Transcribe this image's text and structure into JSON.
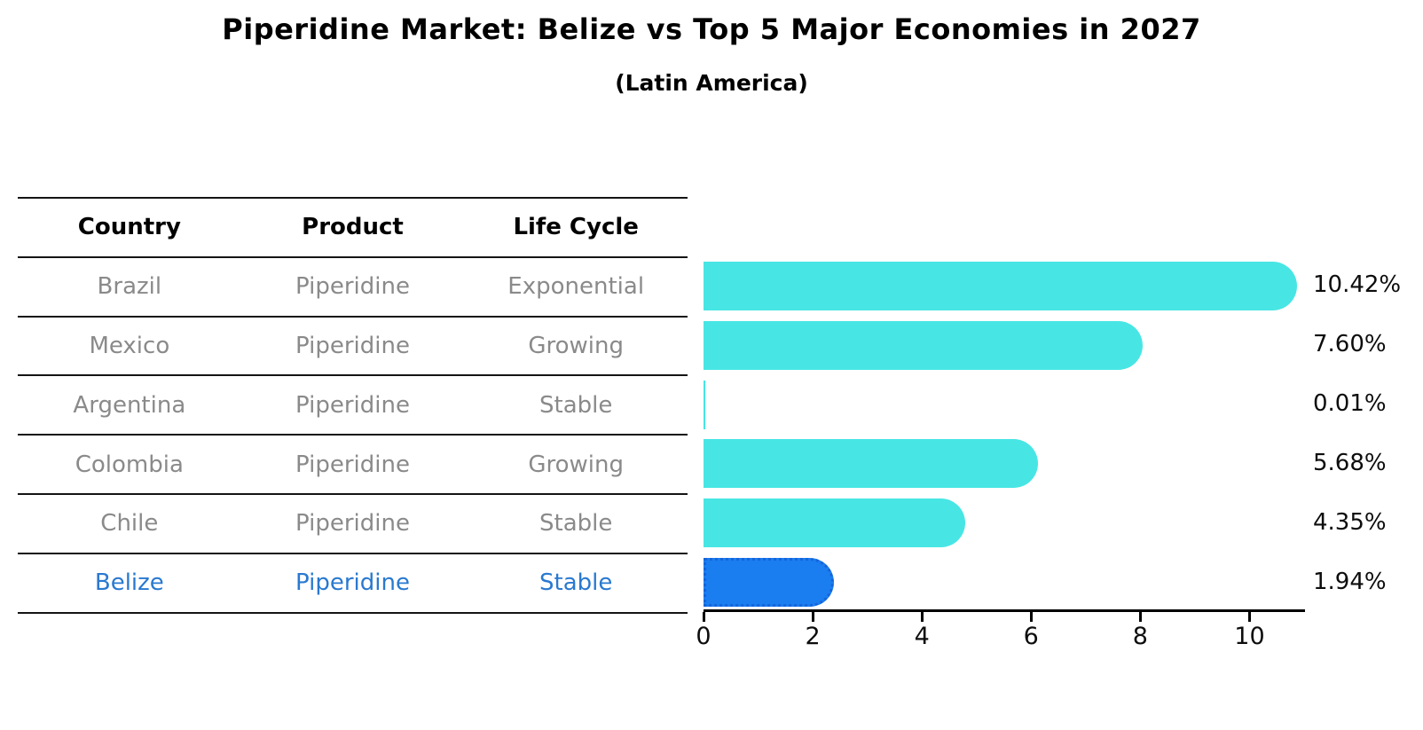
{
  "title": "Piperidine Market: Belize vs Top 5 Major Economies in 2027",
  "subtitle": "(Latin America)",
  "table": {
    "headers": [
      "Country",
      "Product",
      "Life Cycle"
    ],
    "rows": [
      {
        "country": "Brazil",
        "product": "Piperidine",
        "life_cycle": "Exponential",
        "highlight": false
      },
      {
        "country": "Mexico",
        "product": "Piperidine",
        "life_cycle": "Growing",
        "highlight": false
      },
      {
        "country": "Argentina",
        "product": "Piperidine",
        "life_cycle": "Stable",
        "highlight": false
      },
      {
        "country": "Colombia",
        "product": "Piperidine",
        "life_cycle": "Growing",
        "highlight": false
      },
      {
        "country": "Chile",
        "product": "Piperidine",
        "life_cycle": "Stable",
        "highlight": false
      },
      {
        "country": "Belize",
        "product": "Piperidine",
        "life_cycle": "Stable",
        "highlight": true
      }
    ]
  },
  "chart_data": {
    "type": "bar",
    "orientation": "horizontal",
    "title": "Piperidine Market: Belize vs Top 5 Major Economies in 2027 (Latin America)",
    "categories": [
      "Brazil",
      "Mexico",
      "Argentina",
      "Colombia",
      "Chile",
      "Belize"
    ],
    "values": [
      10.42,
      7.6,
      0.01,
      5.68,
      4.35,
      1.94
    ],
    "value_labels": [
      "10.42%",
      "7.60%",
      "0.01%",
      "5.68%",
      "4.35%",
      "1.94%"
    ],
    "highlight_index": 5,
    "xlabel": "",
    "ylabel": "",
    "xlim": [
      0,
      11
    ],
    "xticks": [
      0,
      2,
      4,
      6,
      8,
      10
    ],
    "grid": false,
    "legend": "none",
    "bar_color": "#47E6E4",
    "highlight_bar_color": "#1A7DF0",
    "highlight_border_color": "#1565D8",
    "bar_style": "rounded-right-cap",
    "highlight_border_style": "dotted"
  }
}
